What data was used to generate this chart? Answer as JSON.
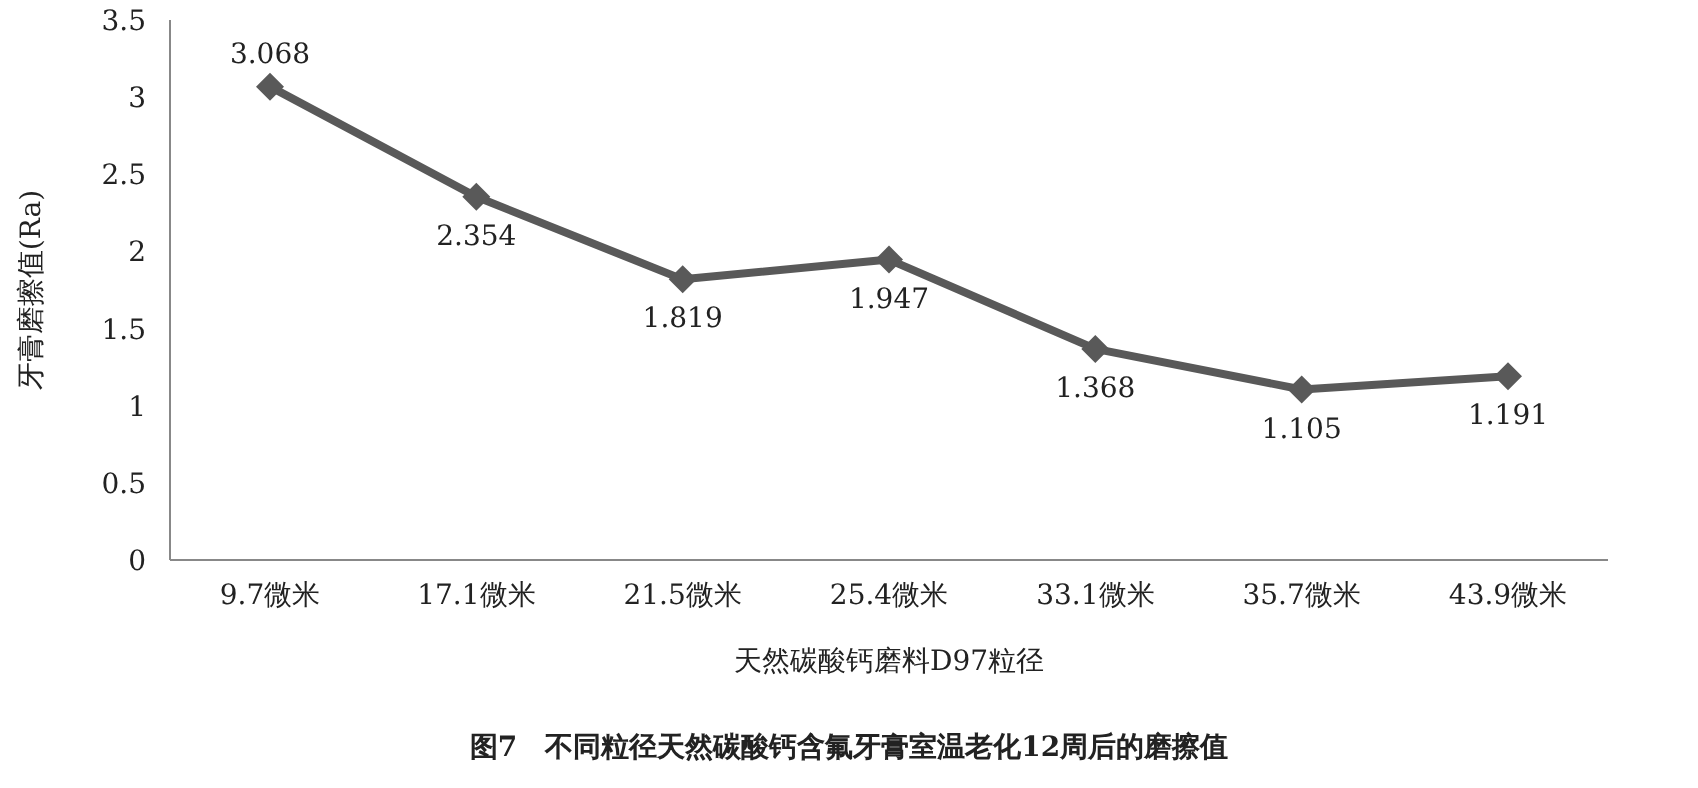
{
  "chart_data": {
    "type": "line",
    "title": "图7　不同粒径天然碳酸钙含氟牙膏室温老化12周后的磨擦值",
    "xlabel": "天然碳酸钙磨料D97粒径",
    "ylabel": "牙膏磨擦值(Ra)",
    "categories": [
      "9.7微米",
      "17.1微米",
      "21.5微米",
      "25.4微米",
      "33.1微米",
      "35.7微米",
      "43.9微米"
    ],
    "series": [
      {
        "color": "#595959",
        "values": [
          3.068,
          2.354,
          1.819,
          1.947,
          1.368,
          1.105,
          1.191
        ]
      }
    ],
    "ylim": [
      0,
      3.5
    ],
    "yticks": [
      0,
      0.5,
      1,
      1.5,
      2,
      2.5,
      3,
      3.5
    ],
    "marker": "diamond",
    "line_style": "solid",
    "data_labels": true,
    "grid": false
  }
}
